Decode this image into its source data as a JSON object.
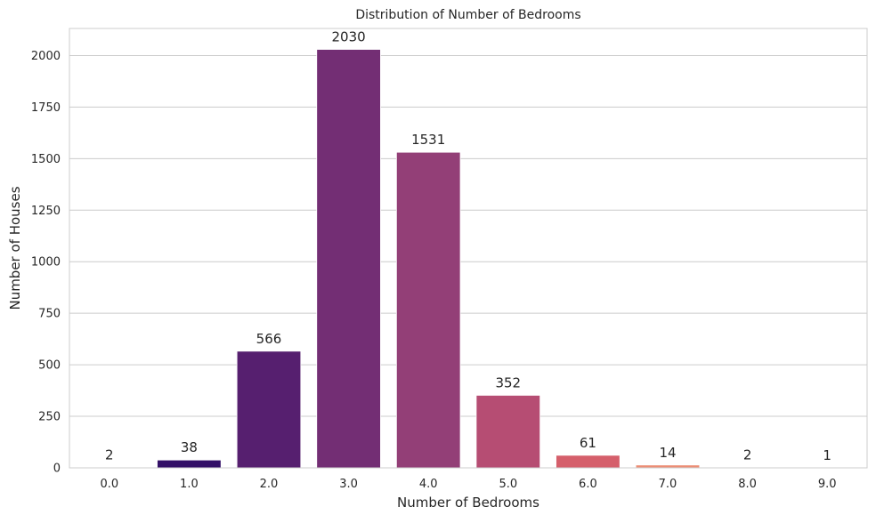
{
  "chart_data": {
    "type": "bar",
    "title": "Distribution of Number of Bedrooms",
    "xlabel": "Number of Bedrooms",
    "ylabel": "Number of Houses",
    "categories": [
      "0.0",
      "1.0",
      "2.0",
      "3.0",
      "4.0",
      "5.0",
      "6.0",
      "7.0",
      "8.0",
      "9.0"
    ],
    "values": [
      2,
      38,
      566,
      2030,
      1531,
      352,
      61,
      14,
      2,
      1
    ],
    "data_labels": [
      "2",
      "38",
      "566",
      "2030",
      "1531",
      "352",
      "61",
      "14",
      "2",
      "1"
    ],
    "yticks": [
      0,
      250,
      500,
      750,
      1000,
      1250,
      1500,
      1750,
      2000
    ],
    "ylim": [
      0,
      2131.5
    ],
    "grid": "horizontal",
    "palette": "magma",
    "bar_colors": [
      "#0e0926",
      "#331067",
      "#561f6f",
      "#732e74",
      "#933f77",
      "#b64d73",
      "#d55f6b",
      "#ec8e76",
      "#f7b897",
      "#fbdcc0"
    ],
    "background": "#ffffff",
    "grid_color": "#cccccc"
  }
}
